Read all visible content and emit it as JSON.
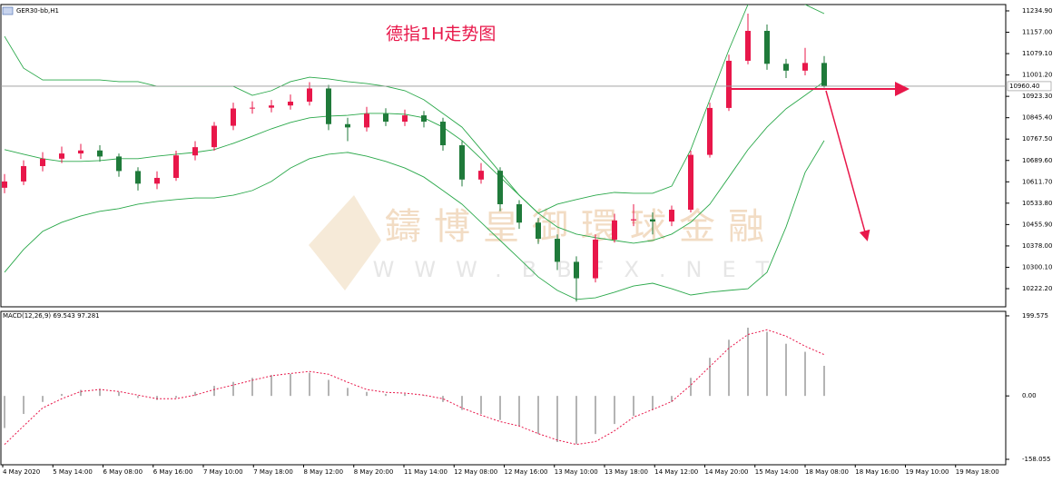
{
  "chart_data": [
    {
      "type": "candlestick",
      "title": "德指1H走势图",
      "symbol_label": "GER30-bb,H1",
      "watermark": [
        "鑄博皇御環球金融",
        "WWW.BBFX.NET"
      ],
      "up_color": "#e8174a",
      "down_color": "#1f7a3a",
      "open": [
        10590,
        10613,
        10669,
        10696,
        10715,
        10726,
        10704,
        10651,
        10605,
        10626,
        10708,
        10738,
        10816,
        10879,
        10882,
        10890,
        10904,
        10952,
        10822,
        10810,
        10860,
        10831,
        10854,
        10831,
        10745,
        10620,
        10652,
        10530,
        10463,
        10404,
        10320,
        10260,
        10401,
        10471,
        10475,
        10467,
        10510,
        10710,
        10881,
        11053,
        11162,
        11042,
        11017,
        11045
      ],
      "high": [
        10640,
        10690,
        10720,
        10740,
        10750,
        10745,
        10715,
        10665,
        10650,
        10725,
        10760,
        10830,
        10900,
        10905,
        10910,
        10930,
        10975,
        10965,
        10845,
        10885,
        10880,
        10875,
        10870,
        10845,
        10760,
        10680,
        10665,
        10545,
        10480,
        10420,
        10340,
        10420,
        10495,
        10530,
        10500,
        10525,
        10725,
        10900,
        11075,
        11225,
        11185,
        11060,
        11100,
        11070
      ],
      "low": [
        10570,
        10600,
        10650,
        10680,
        10695,
        10685,
        10630,
        10580,
        10585,
        10615,
        10690,
        10725,
        10800,
        10860,
        10865,
        10875,
        10890,
        10800,
        10760,
        10795,
        10815,
        10815,
        10810,
        10725,
        10595,
        10605,
        10505,
        10440,
        10385,
        10290,
        10175,
        10245,
        10390,
        10450,
        10420,
        10450,
        10500,
        10700,
        10870,
        11040,
        11020,
        10990,
        11000,
        10955
      ],
      "close": [
        10613,
        10669,
        10696,
        10715,
        10726,
        10704,
        10651,
        10605,
        10626,
        10708,
        10738,
        10816,
        10879,
        10882,
        10890,
        10904,
        10952,
        10822,
        10810,
        10860,
        10831,
        10854,
        10831,
        10745,
        10620,
        10652,
        10530,
        10463,
        10404,
        10320,
        10260,
        10401,
        10471,
        10475,
        10467,
        10510,
        10710,
        10881,
        11053,
        11162,
        11042,
        11017,
        11045,
        10960
      ],
      "bollinger": {
        "color": "#2aa84a",
        "upper": [
          11142,
          11026,
          10983,
          10983,
          10983,
          10983,
          10977,
          10977,
          10960,
          10960,
          10960,
          10960,
          10960,
          10927,
          10944,
          10977,
          10993,
          10987,
          10977,
          10970,
          10960,
          10944,
          10911,
          10861,
          10811,
          10729,
          10646,
          10563,
          10497,
          10530,
          10547,
          10563,
          10573,
          10570,
          10570,
          10596,
          10729,
          10911,
          11093,
          11258,
          11360,
          11330,
          11258,
          11225
        ],
        "middle": [
          10729,
          10712,
          10696,
          10686,
          10686,
          10689,
          10696,
          10696,
          10705,
          10712,
          10719,
          10729,
          10752,
          10778,
          10805,
          10828,
          10845,
          10851,
          10854,
          10861,
          10861,
          10858,
          10845,
          10811,
          10762,
          10696,
          10629,
          10563,
          10497,
          10447,
          10421,
          10408,
          10398,
          10388,
          10398,
          10421,
          10464,
          10530,
          10629,
          10729,
          10811,
          10878,
          10927,
          10977
        ],
        "lower": [
          10282,
          10365,
          10431,
          10464,
          10487,
          10504,
          10514,
          10530,
          10540,
          10547,
          10553,
          10553,
          10563,
          10580,
          10613,
          10662,
          10696,
          10712,
          10719,
          10705,
          10686,
          10662,
          10629,
          10580,
          10530,
          10464,
          10398,
          10332,
          10265,
          10216,
          10183,
          10189,
          10209,
          10232,
          10242,
          10222,
          10199,
          10209,
          10216,
          10222,
          10282,
          10447,
          10646,
          10762
        ]
      },
      "last_price": {
        "value": 10960.4,
        "label": "10960.40"
      },
      "ylim": [
        10156,
        11258
      ],
      "yticks": [
        {
          "value": 11234.9,
          "label": "11234.90"
        },
        {
          "value": 11157,
          "label": "11157.00"
        },
        {
          "value": 11079.1,
          "label": "11079.10"
        },
        {
          "value": 11001.2,
          "label": "11001.20"
        },
        {
          "value": 10923.3,
          "label": "10923.30"
        },
        {
          "value": 10845.4,
          "label": "10845.40"
        },
        {
          "value": 10767.5,
          "label": "10767.50"
        },
        {
          "value": 10689.6,
          "label": "10689.60"
        },
        {
          "value": 10611.7,
          "label": "10611.70"
        },
        {
          "value": 10533.8,
          "label": "10533.80"
        },
        {
          "value": 10455.9,
          "label": "10455.90"
        },
        {
          "value": 10378,
          "label": "10378.00"
        },
        {
          "value": 10300.1,
          "label": "10300.10"
        },
        {
          "value": 10222.2,
          "label": "10222.20"
        }
      ]
    },
    {
      "type": "bar",
      "title": "MACD(12,26,9) 69.543 97.281",
      "color": "#b4b4b4",
      "signal_color": "#e8174a",
      "values": [
        -80,
        -45,
        -15,
        5,
        15,
        18,
        10,
        -5,
        -10,
        -5,
        10,
        25,
        35,
        45,
        52,
        55,
        58,
        40,
        20,
        10,
        5,
        5,
        2,
        -15,
        -35,
        -45,
        -60,
        -75,
        -95,
        -115,
        -120,
        -95,
        -70,
        -50,
        -35,
        -15,
        45,
        95,
        140,
        170,
        160,
        130,
        110,
        75
      ],
      "signal": [
        -121,
        -75,
        -30,
        -7,
        11,
        16,
        11,
        2,
        -7,
        -7,
        2,
        16,
        27,
        39,
        50,
        56,
        61,
        54,
        34,
        16,
        9,
        7,
        2,
        -7,
        -30,
        -48,
        -64,
        -75,
        -94,
        -110,
        -121,
        -114,
        -87,
        -53,
        -34,
        -14,
        27,
        73,
        119,
        153,
        165,
        149,
        124,
        103
      ],
      "ylim": [
        -171.6,
        210.8
      ],
      "yticks": [
        199.575,
        {
          "value": 0,
          "label": "0.00"
        },
        -158.055
      ],
      "xtick_labels": [
        "4 May 2020",
        "5 May 14:00",
        "6 May 08:00",
        "6 May 16:00",
        "7 May 10:00",
        "7 May 18:00",
        "8 May 12:00",
        "8 May 20:00",
        "11 May 14:00",
        "12 May 08:00",
        "12 May 16:00",
        "13 May 10:00",
        "13 May 18:00",
        "14 May 12:00",
        "14 May 20:00",
        "15 May 14:00",
        "18 May 08:00",
        "18 May 16:00",
        "19 May 10:00",
        "19 May 18:00"
      ]
    }
  ]
}
